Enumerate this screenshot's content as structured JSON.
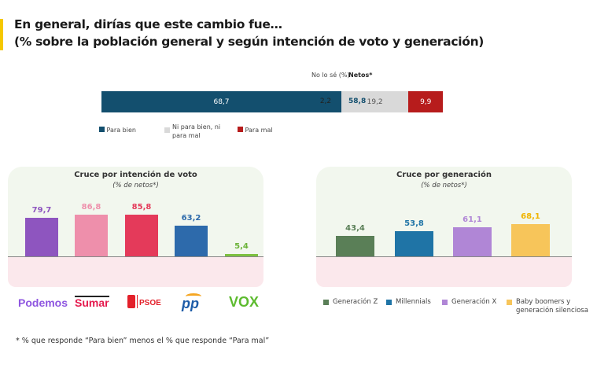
{
  "title": {
    "line1": "En general, dirías que este cambio fue…",
    "line2": "(% sobre la población general y según intención de voto y generación)"
  },
  "accent_color": "#f5c800",
  "general": {
    "headers": {
      "no_lo_se": "No lo sé (%)",
      "netos": "Netos*"
    },
    "segments": [
      {
        "name": "Para bien",
        "value": 68.7,
        "label": "68,7",
        "color": "#134f6e"
      },
      {
        "name": "Ni para bien, ni para mal",
        "value": 19.2,
        "label": "19,2",
        "color": "#d9d9d9"
      },
      {
        "name": "Para mal",
        "value": 9.9,
        "label": "9,9",
        "color": "#b71c1c"
      }
    ],
    "no_lo_se": "2,2",
    "netos": "58,8",
    "legend": [
      "Para bien",
      "Ni para bien, ni para mal",
      "Para mal"
    ]
  },
  "chart_data": [
    {
      "type": "bar",
      "title": "Cruce por intención de voto",
      "subtitle": "(% de netos*)",
      "categories": [
        "Podemos",
        "Sumar",
        "PSOE",
        "PP",
        "VOX"
      ],
      "values": [
        79.7,
        86.8,
        85.8,
        63.2,
        5.4
      ],
      "labels": [
        "79,7",
        "86,8",
        "85,8",
        "63,2",
        "5,4"
      ],
      "colors": [
        "#8e55bf",
        "#ee8fab",
        "#e43a5a",
        "#2d6aab",
        "#7ec141"
      ]
    },
    {
      "type": "bar",
      "title": "Cruce por generación",
      "subtitle": "(% de netos*)",
      "categories": [
        "Generación Z",
        "Millennials",
        "Generación X",
        "Baby boomers y generación silenciosa"
      ],
      "values": [
        43.4,
        53.8,
        61.1,
        68.1
      ],
      "labels": [
        "43,4",
        "53,8",
        "61,1",
        "68,1"
      ],
      "colors": [
        "#5a7f57",
        "#1f74a6",
        "#b086d6",
        "#f7c55a"
      ],
      "legend_placement": "bottom"
    }
  ],
  "logos": {
    "podemos": "Podemos",
    "sumar": "Sumar",
    "psoe": "PSOE",
    "pp": "pp",
    "vox": "VOX"
  },
  "footnote": "* % que responde “Para bien” menos el % que responde “Para mal”"
}
